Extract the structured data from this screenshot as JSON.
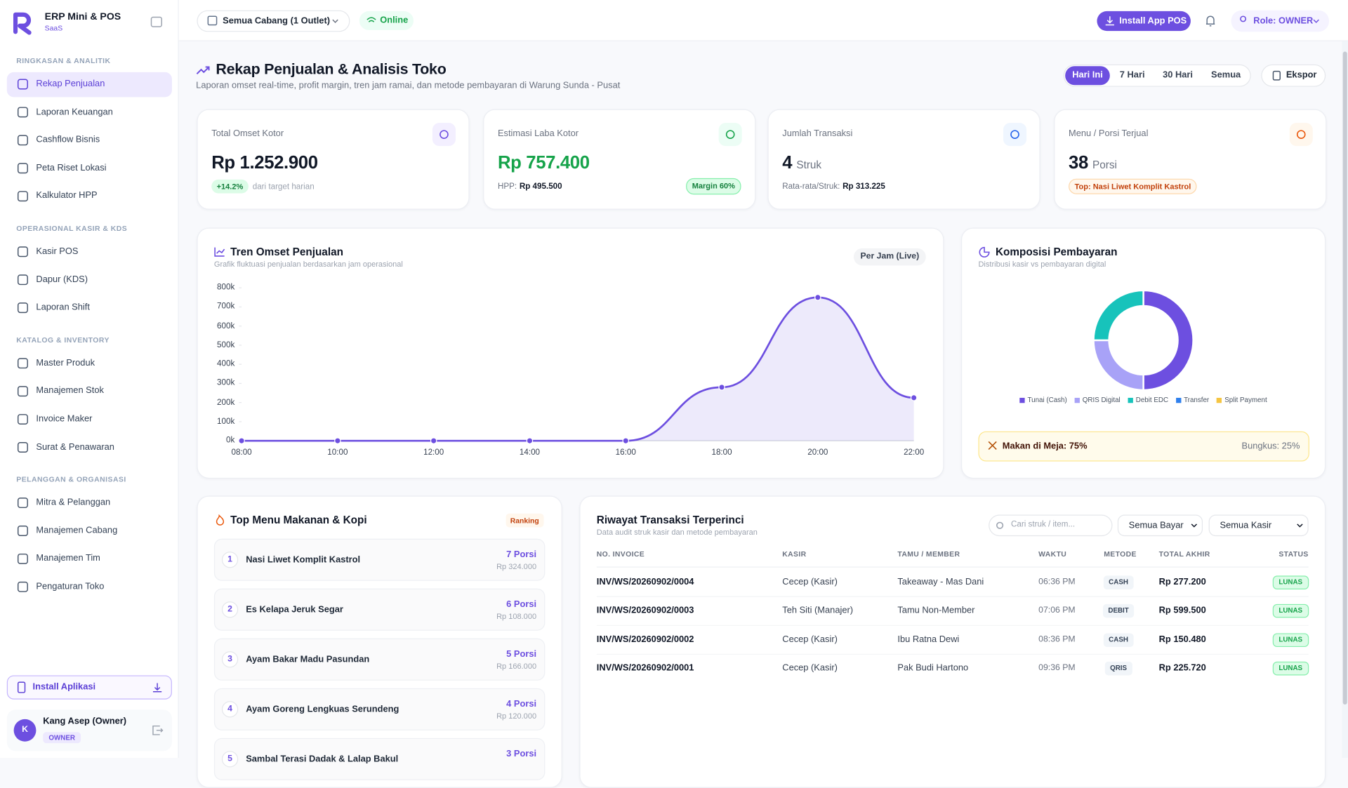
{
  "brand": {
    "name": "ERP Mini & POS",
    "sub": "SaaS"
  },
  "nav": [
    {
      "heading": "RINGKASAN & ANALITIK",
      "items": [
        {
          "label": "Rekap Penjualan",
          "active": true
        },
        {
          "label": "Laporan Keuangan"
        },
        {
          "label": "Cashflow Bisnis"
        },
        {
          "label": "Peta Riset Lokasi"
        },
        {
          "label": "Kalkulator HPP"
        }
      ]
    },
    {
      "heading": "OPERASIONAL KASIR & KDS",
      "items": [
        {
          "label": "Kasir POS"
        },
        {
          "label": "Dapur (KDS)"
        },
        {
          "label": "Laporan Shift"
        }
      ]
    },
    {
      "heading": "KATALOG & INVENTORY",
      "items": [
        {
          "label": "Master Produk"
        },
        {
          "label": "Manajemen Stok"
        },
        {
          "label": "Invoice Maker"
        },
        {
          "label": "Surat & Penawaran"
        }
      ]
    },
    {
      "heading": "PELANGGAN & ORGANISASI",
      "items": [
        {
          "label": "Mitra & Pelanggan"
        },
        {
          "label": "Manajemen Cabang"
        },
        {
          "label": "Manajemen Tim"
        },
        {
          "label": "Pengaturan Toko"
        }
      ]
    }
  ],
  "sidebar": {
    "install_app": "Install Aplikasi"
  },
  "user": {
    "initial": "K",
    "name": "Kang Asep (Owner)",
    "role": "OWNER"
  },
  "topbar": {
    "branch": "Semua Cabang (1 Outlet)",
    "status": "Online",
    "install_pos": "Install App POS",
    "role": "Role: OWNER"
  },
  "page": {
    "title": "Rekap Penjualan & Analisis Toko",
    "subtitle": "Laporan omset real-time, profit margin, tren jam ramai, dan metode pembayaran di Warung Sunda - Pusat",
    "ranges": [
      {
        "label": "Hari Ini",
        "active": true
      },
      {
        "label": "7 Hari"
      },
      {
        "label": "30 Hari"
      },
      {
        "label": "Semua"
      }
    ],
    "export": "Ekspor"
  },
  "kpis": [
    {
      "label": "Total Omset Kotor",
      "value": "Rp 1.252.900",
      "badge": "+14.2%",
      "note": "dari target harian"
    },
    {
      "label": "Estimasi Laba Kotor",
      "value": "Rp 757.400",
      "note_label": "HPP:",
      "note_value": "Rp 495.500",
      "badge": "Margin 60%"
    },
    {
      "label": "Jumlah Transaksi",
      "value": "4",
      "unit": "Struk",
      "note_label": "Rata-rata/Struk:",
      "note_value": "Rp 313.225"
    },
    {
      "label": "Menu / Porsi Terjual",
      "value": "38",
      "unit": "Porsi",
      "badge": "Top: Nasi Liwet Komplit Kastrol"
    }
  ],
  "trend_chart": {
    "type": "line",
    "title": "Tren Omset Penjualan",
    "subtitle": "Grafik fluktuasi penjualan berdasarkan jam operasional",
    "badge": "Per Jam (Live)",
    "categories": [
      "08:00",
      "10:00",
      "12:00",
      "14:00",
      "16:00",
      "18:00",
      "20:00",
      "22:00"
    ],
    "values": [
      0,
      0,
      0,
      0,
      0,
      280000,
      750000,
      225000
    ],
    "color": "#6d4fe0",
    "ylim": [
      0,
      800000
    ],
    "yticks": [
      {
        "value": 0,
        "label": "0k"
      },
      {
        "value": 100000,
        "label": "100k"
      },
      {
        "value": 200000,
        "label": "200k"
      },
      {
        "value": 300000,
        "label": "300k"
      },
      {
        "value": 400000,
        "label": "400k"
      },
      {
        "value": 500000,
        "label": "500k"
      },
      {
        "value": 600000,
        "label": "600k"
      },
      {
        "value": 700000,
        "label": "700k"
      },
      {
        "value": 800000,
        "label": "800k"
      }
    ],
    "grid": false
  },
  "payment_chart": {
    "type": "donut",
    "title": "Komposisi Pembayaran",
    "subtitle": "Distribusi kasir vs pembayaran digital",
    "categories": [
      "Tunai (Cash)",
      "QRIS Digital",
      "Debit EDC",
      "Transfer",
      "Split Payment"
    ],
    "values": [
      50,
      25,
      25,
      0,
      0
    ],
    "colors": [
      "#6d4fe0",
      "#a8a2f7",
      "#17c3bb",
      "#2f80ed",
      "#f5c542"
    ],
    "dine_in": "Makan di Meja: 75%",
    "takeaway": "Bungkus: 25%"
  },
  "top_menu": {
    "title": "Top Menu Makanan & Kopi",
    "badge": "Ranking",
    "items": [
      {
        "rank": 1,
        "name": "Nasi Liwet Komplit Kastrol",
        "qty": "7 Porsi",
        "revenue": "Rp 324.000"
      },
      {
        "rank": 2,
        "name": "Es Kelapa Jeruk Segar",
        "qty": "6 Porsi",
        "revenue": "Rp 108.000"
      },
      {
        "rank": 3,
        "name": "Ayam Bakar Madu Pasundan",
        "qty": "5 Porsi",
        "revenue": "Rp 166.000"
      },
      {
        "rank": 4,
        "name": "Ayam Goreng Lengkuas Serundeng",
        "qty": "4 Porsi",
        "revenue": "Rp 120.000"
      },
      {
        "rank": 5,
        "name": "Sambal Terasi Dadak & Lalap Bakul",
        "qty": "3 Porsi"
      }
    ]
  },
  "transactions": {
    "title": "Riwayat Transaksi Terperinci",
    "subtitle": "Data audit struk kasir dan metode pembayaran",
    "search_placeholder": "Cari struk / item...",
    "filters": [
      "Semua Bayar",
      "Semua Kasir"
    ],
    "columns": [
      "NO. INVOICE",
      "KASIR",
      "TAMU / MEMBER",
      "WAKTU",
      "METODE",
      "TOTAL AKHIR",
      "STATUS"
    ],
    "rows": [
      {
        "invoice": "INV/WS/20260902/0004",
        "cashier": "Cecep (Kasir)",
        "customer": "Takeaway - Mas Dani",
        "time": "06:36 PM",
        "method": "CASH",
        "total": "Rp 277.200",
        "status": "LUNAS"
      },
      {
        "invoice": "INV/WS/20260902/0003",
        "cashier": "Teh Siti (Manajer)",
        "customer": "Tamu Non-Member",
        "time": "07:06 PM",
        "method": "DEBIT",
        "total": "Rp 599.500",
        "status": "LUNAS"
      },
      {
        "invoice": "INV/WS/20260902/0002",
        "cashier": "Cecep (Kasir)",
        "customer": "Ibu Ratna Dewi",
        "time": "08:36 PM",
        "method": "CASH",
        "total": "Rp 150.480",
        "status": "LUNAS"
      },
      {
        "invoice": "INV/WS/20260902/0001",
        "cashier": "Cecep (Kasir)",
        "customer": "Pak Budi Hartono",
        "time": "09:36 PM",
        "method": "QRIS",
        "total": "Rp 225.720",
        "status": "LUNAS"
      }
    ]
  }
}
